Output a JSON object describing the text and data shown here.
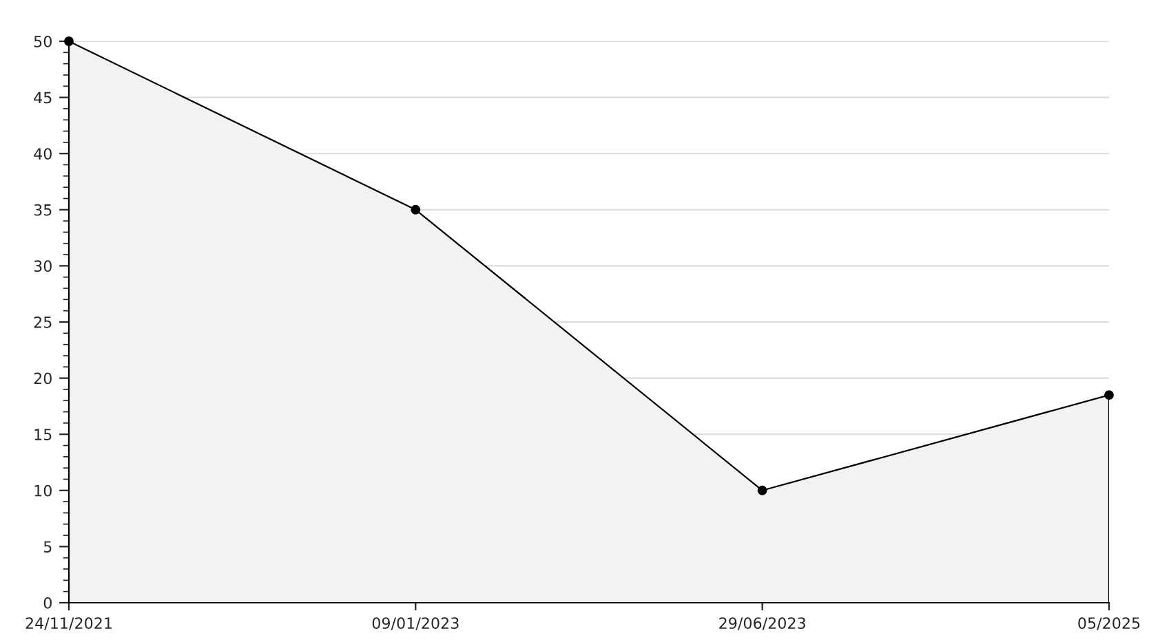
{
  "chart_data": {
    "type": "area",
    "categories": [
      "24/11/2021",
      "09/01/2023",
      "29/06/2023",
      "05/2025"
    ],
    "series": [
      {
        "color": "#f2f2f2",
        "values": [
          50,
          35,
          10,
          18.5
        ]
      }
    ],
    "ylim": [
      0,
      50
    ],
    "yticks": [
      0,
      5,
      10,
      15,
      20,
      25,
      30,
      35,
      40,
      45,
      50
    ],
    "grid": "y",
    "legend": false,
    "marker": "circle",
    "line_style": "solid"
  }
}
